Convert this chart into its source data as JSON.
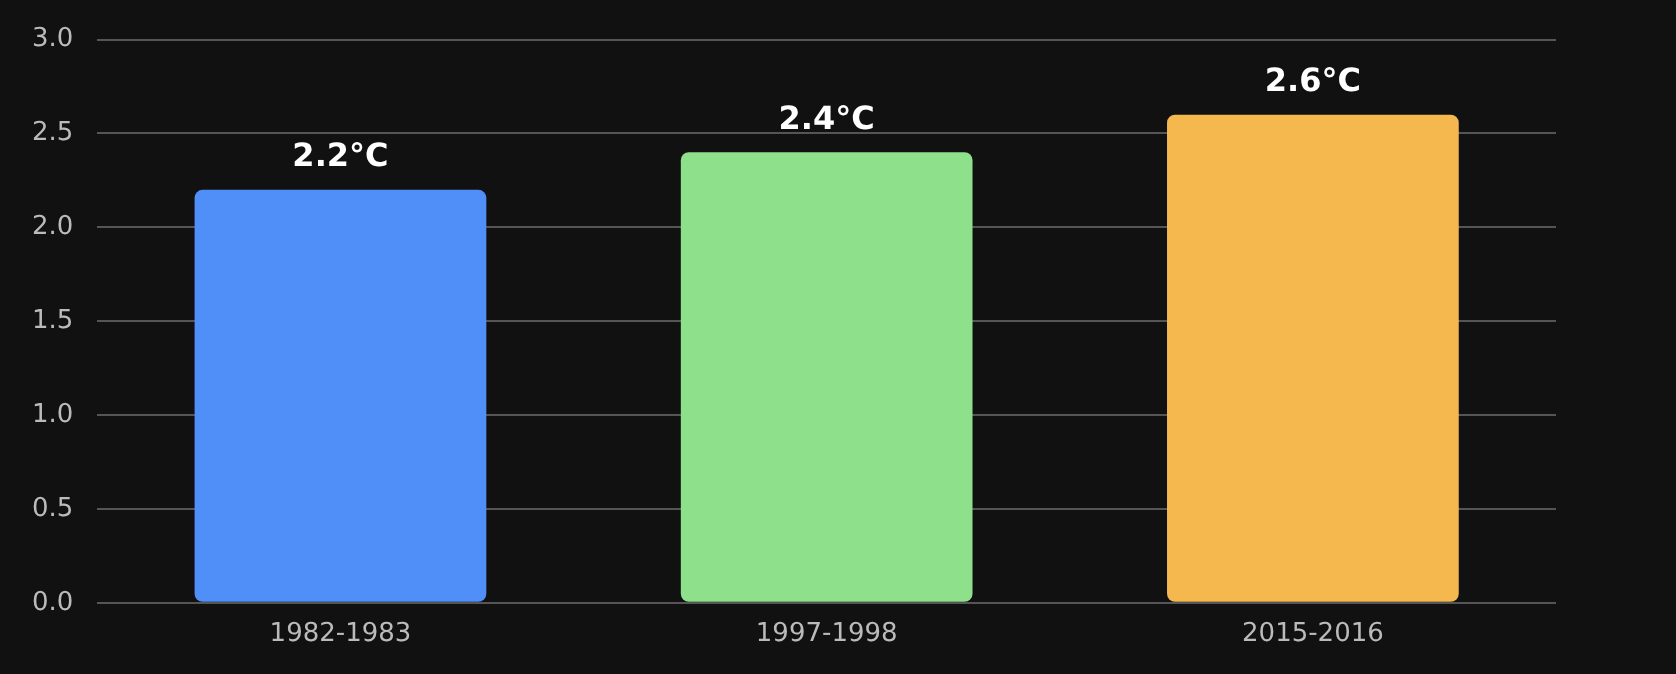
{
  "chart_data": {
    "type": "bar",
    "categories": [
      "1982-1983",
      "1997-1998",
      "2015-2016"
    ],
    "values": [
      2.2,
      2.4,
      2.6
    ],
    "colors": [
      "#4f8ff7",
      "#8fe08a",
      "#f5b84f"
    ],
    "value_labels": [
      "2.2°C",
      "2.4°C",
      "2.6°C"
    ],
    "ylim": [
      0,
      3.0
    ],
    "yticks": [
      {
        "value": 0,
        "label": "0.0"
      },
      {
        "value": 0.5,
        "label": "0.5"
      },
      {
        "value": 1,
        "label": "1.0"
      },
      {
        "value": 1.5,
        "label": "1.5"
      },
      {
        "value": 2,
        "label": "2.0"
      },
      {
        "value": 2.5,
        "label": "2.5"
      },
      {
        "value": 3,
        "label": "3.0"
      }
    ],
    "grid": "y",
    "legend": false
  }
}
